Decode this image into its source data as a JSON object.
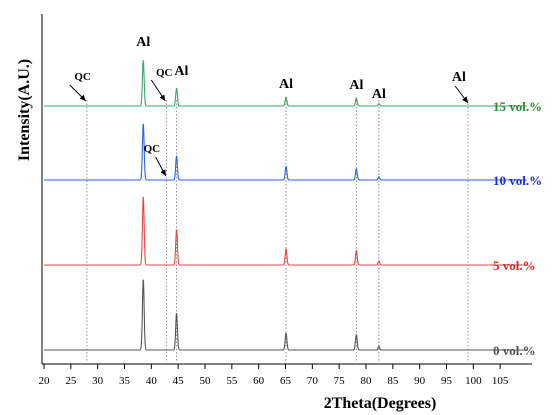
{
  "chart_data": {
    "type": "line",
    "title": "",
    "xlabel": "2Theta(Degrees)",
    "ylabel": "Intensity(A.U.)",
    "xlim": [
      20,
      110
    ],
    "x_ticks": [
      20,
      25,
      30,
      35,
      40,
      45,
      50,
      55,
      60,
      65,
      70,
      75,
      80,
      85,
      90,
      95,
      100,
      105
    ],
    "y_ticks": "none",
    "grid": false,
    "legend": "none",
    "series": [
      {
        "name": "0 vol.%",
        "color": "#555555",
        "peaks": [
          {
            "x": 38.5,
            "height": 0.88,
            "width": 0.16
          },
          {
            "x": 44.7,
            "height": 0.46,
            "width": 0.16
          },
          {
            "x": 65.1,
            "height": 0.21,
            "width": 0.16
          },
          {
            "x": 78.2,
            "height": 0.19,
            "width": 0.16
          },
          {
            "x": 82.4,
            "height": 0.05,
            "width": 0.14
          }
        ]
      },
      {
        "name": "5 vol.%",
        "color": "#e84545",
        "peaks": [
          {
            "x": 38.5,
            "height": 0.85,
            "width": 0.16
          },
          {
            "x": 44.7,
            "height": 0.44,
            "width": 0.16
          },
          {
            "x": 65.1,
            "height": 0.2,
            "width": 0.16
          },
          {
            "x": 78.2,
            "height": 0.18,
            "width": 0.16
          },
          {
            "x": 82.4,
            "height": 0.05,
            "width": 0.14
          }
        ]
      },
      {
        "name": "10 vol.%",
        "color": "#2f62e0",
        "peaks": [
          {
            "x": 38.5,
            "height": 0.7,
            "width": 0.16
          },
          {
            "x": 44.7,
            "height": 0.3,
            "width": 0.16
          },
          {
            "x": 65.1,
            "height": 0.17,
            "width": 0.16
          },
          {
            "x": 78.2,
            "height": 0.14,
            "width": 0.16
          },
          {
            "x": 82.4,
            "height": 0.04,
            "width": 0.14
          }
        ]
      },
      {
        "name": "15 vol.%",
        "color": "#3aa66b",
        "peaks": [
          {
            "x": 38.5,
            "height": 0.57,
            "width": 0.16
          },
          {
            "x": 44.7,
            "height": 0.22,
            "width": 0.16
          },
          {
            "x": 65.1,
            "height": 0.11,
            "width": 0.16
          },
          {
            "x": 78.2,
            "height": 0.1,
            "width": 0.16
          },
          {
            "x": 82.4,
            "height": 0.03,
            "width": 0.14
          }
        ]
      }
    ],
    "series_label_colors": [
      "#555555",
      "#e8262a",
      "#1f2fd6",
      "#2f8a3a"
    ],
    "reference_lines": [
      {
        "x": 28.0,
        "style": "dotted"
      },
      {
        "x": 42.8,
        "style": "dotted"
      },
      {
        "x": 44.7,
        "style": "dotted"
      },
      {
        "x": 65.1,
        "style": "dotted"
      },
      {
        "x": 78.2,
        "style": "dotted"
      },
      {
        "x": 82.4,
        "style": "dotted"
      },
      {
        "x": 99.0,
        "style": "dotted"
      }
    ],
    "annotations": [
      {
        "text": "QC",
        "target_x": 28.0,
        "arrow": true,
        "series": "15 vol.%"
      },
      {
        "text": "Al",
        "target_x": 38.5,
        "arrow": false,
        "series": "15 vol.%"
      },
      {
        "text": "QC",
        "target_x": 42.8,
        "arrow": true,
        "series": "15 vol.%"
      },
      {
        "text": "Al",
        "target_x": 44.7,
        "arrow": false,
        "series": "15 vol.%"
      },
      {
        "text": "Al",
        "target_x": 65.1,
        "arrow": false,
        "series": "15 vol.%"
      },
      {
        "text": "Al",
        "target_x": 78.2,
        "arrow": false,
        "series": "15 vol.%"
      },
      {
        "text": "Al",
        "target_x": 82.4,
        "arrow": false,
        "series": "15 vol.%"
      },
      {
        "text": "Al",
        "target_x": 99.0,
        "arrow": true,
        "series": "15 vol.%"
      },
      {
        "text": "QC",
        "target_x": 42.8,
        "arrow": true,
        "series": "10 vol.%"
      }
    ]
  }
}
